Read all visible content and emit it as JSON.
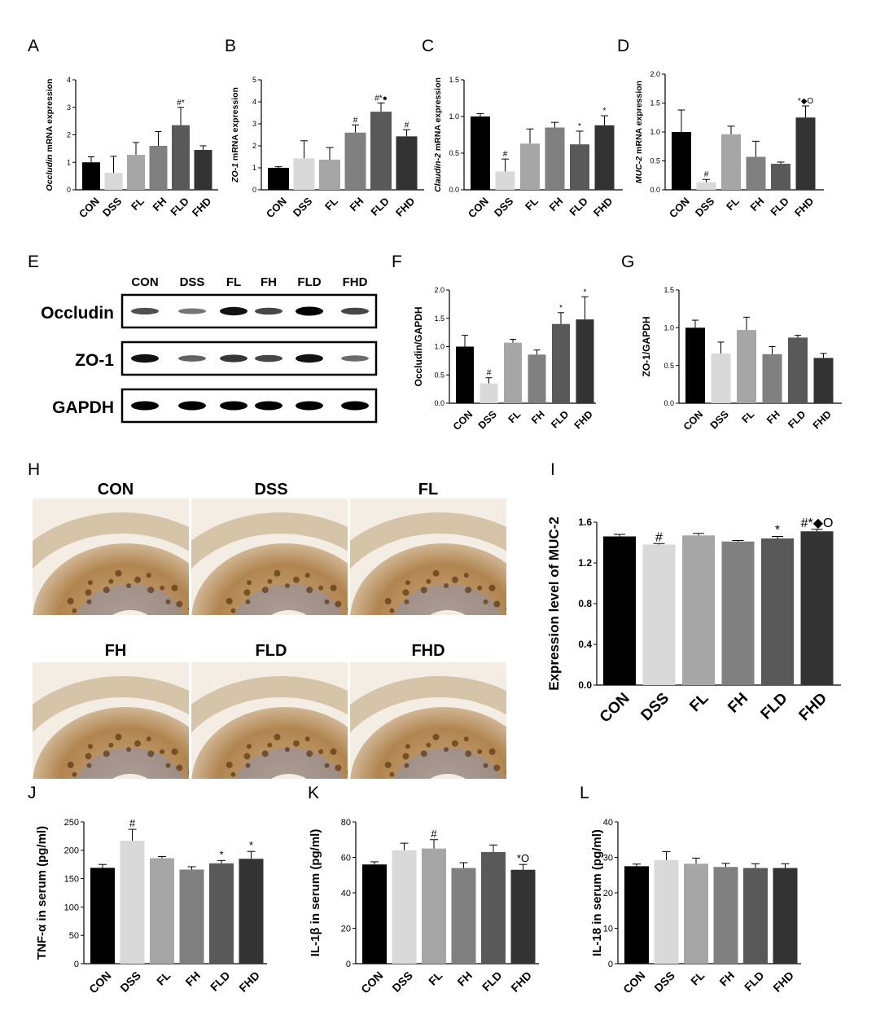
{
  "colors": [
    "#000000",
    "#d9d9d9",
    "#a6a6a6",
    "#808080",
    "#595959",
    "#333333"
  ],
  "categories": [
    "CON",
    "DSS",
    "FL",
    "FH",
    "FLD",
    "FHD"
  ],
  "chart_data": [
    {
      "id": "A",
      "letter": "A",
      "type": "bar",
      "ylabel_italic": "Occludin",
      "ylabel_rest": " mRNA expression",
      "ylim": [
        0,
        4
      ],
      "yticks": [
        "0",
        "1",
        "2",
        "3",
        "4"
      ],
      "values": [
        1.0,
        0.62,
        1.27,
        1.6,
        2.35,
        1.45
      ],
      "errors": [
        0.2,
        0.6,
        0.45,
        0.52,
        0.65,
        0.15
      ],
      "sig": [
        "",
        "",
        "",
        "",
        "#*",
        ""
      ]
    },
    {
      "id": "B",
      "letter": "B",
      "type": "bar",
      "ylabel_italic": "ZO-1",
      "ylabel_rest": " mRNA expression",
      "ylim": [
        0,
        5
      ],
      "yticks": [
        "0",
        "1",
        "2",
        "3",
        "4",
        "5"
      ],
      "values": [
        1.0,
        1.43,
        1.37,
        2.6,
        3.55,
        2.43
      ],
      "errors": [
        0.05,
        0.8,
        0.55,
        0.35,
        0.4,
        0.3
      ],
      "sig": [
        "",
        "",
        "",
        "#",
        "#*●",
        "#"
      ]
    },
    {
      "id": "C",
      "letter": "C",
      "type": "bar",
      "ylabel_italic": "Claudin-2",
      "ylabel_rest": " mRNA expression",
      "ylim": [
        0,
        1.5
      ],
      "yticks": [
        "0.0",
        "0.5",
        "1.0",
        "1.5"
      ],
      "values": [
        1.0,
        0.25,
        0.63,
        0.85,
        0.62,
        0.88
      ],
      "errors": [
        0.04,
        0.17,
        0.2,
        0.07,
        0.18,
        0.13
      ],
      "sig": [
        "",
        "#",
        "",
        "",
        "*",
        "*"
      ]
    },
    {
      "id": "D",
      "letter": "D",
      "type": "bar",
      "ylabel_italic": "MUC-2",
      "ylabel_rest": " mRNA expression",
      "ylim": [
        0,
        2.0
      ],
      "yticks": [
        "0.0",
        "0.5",
        "1.0",
        "1.5",
        "2.0"
      ],
      "values": [
        1.0,
        0.13,
        0.96,
        0.57,
        0.45,
        1.25
      ],
      "errors": [
        0.38,
        0.05,
        0.14,
        0.27,
        0.03,
        0.2
      ],
      "sig": [
        "",
        "#",
        "",
        "",
        "",
        "*◆O"
      ]
    },
    {
      "id": "F",
      "letter": "F",
      "type": "bar",
      "ylabel_italic": "",
      "ylabel_rest": "Occludin/GAPDH",
      "ylim": [
        0,
        2.0
      ],
      "yticks": [
        "0.0",
        "0.5",
        "1.0",
        "1.5",
        "2.0"
      ],
      "values": [
        1.0,
        0.35,
        1.07,
        0.86,
        1.4,
        1.48
      ],
      "errors": [
        0.2,
        0.1,
        0.06,
        0.08,
        0.2,
        0.4
      ],
      "sig": [
        "",
        "#",
        "",
        "",
        "*",
        "*"
      ]
    },
    {
      "id": "G",
      "letter": "G",
      "type": "bar",
      "ylabel_italic": "",
      "ylabel_rest": "ZO-1/GAPDH",
      "ylim": [
        0,
        1.5
      ],
      "yticks": [
        "0.0",
        "0.5",
        "1.0",
        "1.5"
      ],
      "values": [
        1.0,
        0.66,
        0.97,
        0.65,
        0.87,
        0.6
      ],
      "errors": [
        0.1,
        0.15,
        0.17,
        0.1,
        0.03,
        0.06
      ],
      "sig": [
        "",
        "",
        "",
        "",
        "",
        ""
      ]
    },
    {
      "id": "I",
      "letter": "I",
      "type": "bar",
      "ylabel_italic": "",
      "ylabel_rest": "Expression level of MUC-2",
      "ylim": [
        0,
        1.6
      ],
      "yticks": [
        "0.0",
        "0.4",
        "0.8",
        "1.2",
        "1.6"
      ],
      "values": [
        1.46,
        1.38,
        1.47,
        1.41,
        1.44,
        1.51
      ],
      "errors": [
        0.02,
        0.01,
        0.02,
        0.01,
        0.02,
        0.02
      ],
      "sig": [
        "",
        "#",
        "",
        "",
        "*",
        "#*◆O"
      ]
    },
    {
      "id": "J",
      "letter": "J",
      "type": "bar",
      "ylabel_italic": "",
      "ylabel_rest": "TNF-α in serum (pg/ml)",
      "ylim": [
        0,
        250
      ],
      "yticks": [
        "0",
        "50",
        "100",
        "150",
        "200",
        "250"
      ],
      "values": [
        169,
        217,
        186,
        166,
        177,
        185
      ],
      "errors": [
        6,
        20,
        3,
        5,
        5,
        13
      ],
      "sig": [
        "",
        "#",
        "",
        "",
        "*",
        "*"
      ]
    },
    {
      "id": "K",
      "letter": "K",
      "type": "bar",
      "ylabel_italic": "",
      "ylabel_rest": "IL-1β in serum (pg/ml)",
      "ylim": [
        0,
        80
      ],
      "yticks": [
        "0",
        "20",
        "40",
        "60",
        "80"
      ],
      "values": [
        56,
        64,
        65,
        54,
        63,
        53
      ],
      "errors": [
        1.5,
        4,
        5,
        3,
        4,
        3
      ],
      "sig": [
        "",
        "",
        "#",
        "",
        "",
        "*O"
      ]
    },
    {
      "id": "L",
      "letter": "L",
      "type": "bar",
      "ylabel_italic": "",
      "ylabel_rest": "IL-18 in serum (pg/ml)",
      "ylim": [
        0,
        40
      ],
      "yticks": [
        "0",
        "10",
        "20",
        "30",
        "40"
      ],
      "values": [
        27.5,
        29.2,
        28.2,
        27.3,
        27.0,
        27.0
      ],
      "errors": [
        0.6,
        2.4,
        1.6,
        1.0,
        1.2,
        1.2
      ],
      "sig": [
        "",
        "",
        "",
        "",
        "",
        ""
      ]
    }
  ],
  "western_blot": {
    "letter": "E",
    "lanes": [
      "CON",
      "DSS",
      "FL",
      "FH",
      "FLD",
      "FHD"
    ],
    "rows": [
      {
        "label": "Occludin",
        "intensity": [
          0.55,
          0.35,
          0.9,
          0.6,
          1.0,
          0.6
        ]
      },
      {
        "label": "ZO-1",
        "intensity": [
          0.9,
          0.45,
          0.7,
          0.6,
          0.9,
          0.4
        ]
      },
      {
        "label": "GAPDH",
        "intensity": [
          1.0,
          1.0,
          1.0,
          1.0,
          1.0,
          1.0
        ]
      }
    ]
  },
  "histology": {
    "letter": "H",
    "titles": [
      "CON",
      "DSS",
      "FL",
      "FH",
      "FLD",
      "FHD"
    ]
  }
}
